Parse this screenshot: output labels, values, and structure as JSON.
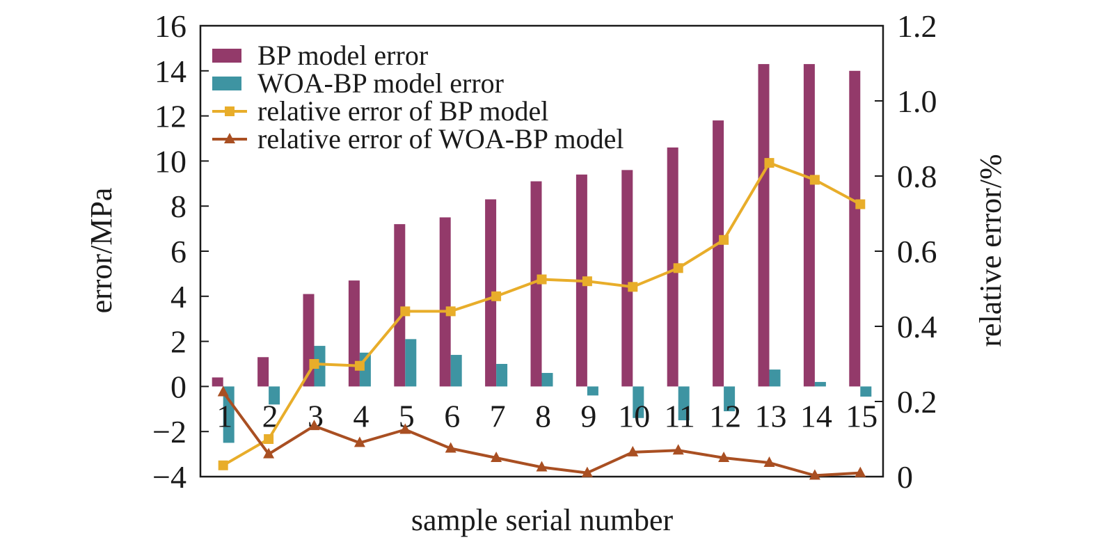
{
  "chart_data": {
    "type": "bar",
    "xlabel": "sample serial number",
    "ylabel": "error/MPa",
    "ylabel_right": "relative error/%",
    "ylim": [
      -4,
      16
    ],
    "ylim_right": [
      0,
      1.2
    ],
    "y_ticks": [
      "−4",
      "−2",
      "0",
      "2",
      "4",
      "6",
      "8",
      "10",
      "12",
      "14",
      "16"
    ],
    "y_ticks_right": [
      "0",
      "0.2",
      "0.4",
      "0.6",
      "0.8",
      "1.0",
      "1.2"
    ],
    "categories": [
      "1",
      "2",
      "3",
      "4",
      "5",
      "6",
      "7",
      "8",
      "9",
      "10",
      "11",
      "12",
      "13",
      "14",
      "15"
    ],
    "grid": false,
    "legend_position": "top-left",
    "series": [
      {
        "name": "BP model error",
        "kind": "bar",
        "axis": "left",
        "color": "#933a6a",
        "values": [
          0.4,
          1.3,
          4.1,
          4.7,
          7.2,
          7.5,
          8.3,
          9.1,
          9.4,
          9.6,
          10.6,
          11.8,
          14.3,
          14.3,
          14.0
        ]
      },
      {
        "name": "WOA-BP model error",
        "kind": "bar",
        "axis": "left",
        "color": "#3e94a2",
        "values": [
          -2.5,
          -0.8,
          1.8,
          1.5,
          2.1,
          1.4,
          1.0,
          0.6,
          -0.4,
          -1.4,
          -1.5,
          -1.1,
          0.75,
          0.2,
          -0.45
        ]
      },
      {
        "name": "relative error of BP model",
        "kind": "line",
        "marker": "square",
        "axis": "right",
        "color": "#e8ad2a",
        "values": [
          0.03,
          0.1,
          0.3,
          0.295,
          0.44,
          0.44,
          0.48,
          0.525,
          0.52,
          0.505,
          0.555,
          0.63,
          0.835,
          0.79,
          0.725
        ]
      },
      {
        "name": "relative error of WOA-BP model",
        "kind": "line",
        "marker": "triangle",
        "axis": "right",
        "color": "#a94f22",
        "values": [
          0.225,
          0.06,
          0.135,
          0.09,
          0.125,
          0.075,
          0.05,
          0.025,
          0.01,
          0.065,
          0.07,
          0.05,
          0.037,
          0.003,
          0.01
        ]
      }
    ]
  }
}
